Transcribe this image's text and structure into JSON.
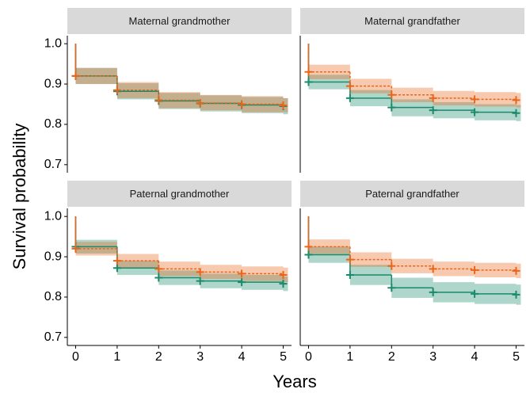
{
  "ylabel": "Survival probability",
  "xlabel": "Years",
  "chart_data": [
    {
      "type": "line",
      "title": "Maternal grandmother",
      "xlim": [
        -0.2,
        5.2
      ],
      "ylim": [
        0.68,
        1.02
      ],
      "yticks": [
        0.7,
        0.8,
        0.9,
        {
          "value": 1,
          "label": "1.0"
        }
      ],
      "x": [
        0,
        0,
        1,
        2,
        3,
        4,
        5
      ],
      "series": [
        {
          "color": "#1a8a6a",
          "linestyle": "solid",
          "values": [
            1,
            0.92,
            0.882,
            0.858,
            0.852,
            0.848,
            0.845
          ],
          "lower": [
            null,
            0.9,
            0.862,
            0.838,
            0.832,
            0.828,
            0.825
          ],
          "upper": [
            null,
            0.94,
            0.902,
            0.878,
            0.872,
            0.868,
            0.865
          ]
        },
        {
          "color": "#e8661c",
          "linestyle": "dashed",
          "values": [
            1,
            0.92,
            0.885,
            0.86,
            0.853,
            0.85,
            0.847
          ],
          "lower": [
            null,
            0.9,
            0.865,
            0.84,
            0.835,
            0.83,
            0.83
          ],
          "upper": [
            null,
            0.94,
            0.905,
            0.88,
            0.873,
            0.87,
            0.865
          ]
        }
      ]
    },
    {
      "type": "line",
      "title": "Maternal grandfather",
      "xlim": [
        -0.2,
        5.2
      ],
      "ylim": [
        0.68,
        1.02
      ],
      "x": [
        0,
        0,
        1,
        2,
        3,
        4,
        5
      ],
      "series": [
        {
          "color": "#1a8a6a",
          "linestyle": "solid",
          "values": [
            1,
            0.905,
            0.865,
            0.842,
            0.835,
            0.83,
            0.828
          ],
          "lower": [
            null,
            0.887,
            0.845,
            0.82,
            0.815,
            0.81,
            0.808
          ],
          "upper": [
            null,
            0.923,
            0.885,
            0.862,
            0.855,
            0.85,
            0.848
          ]
        },
        {
          "color": "#e8661c",
          "linestyle": "dashed",
          "values": [
            1,
            0.93,
            0.895,
            0.873,
            0.865,
            0.862,
            0.86
          ],
          "lower": [
            null,
            0.912,
            0.877,
            0.855,
            0.847,
            0.844,
            0.842
          ],
          "upper": [
            null,
            0.948,
            0.913,
            0.891,
            0.883,
            0.88,
            0.878
          ]
        }
      ]
    },
    {
      "type": "line",
      "title": "Paternal grandmother",
      "xlim": [
        -0.2,
        5.2
      ],
      "ylim": [
        0.68,
        1.02
      ],
      "yticks": [
        0.7,
        0.8,
        0.9,
        {
          "value": 1,
          "label": "1.0"
        }
      ],
      "xticks": [
        0,
        1,
        2,
        3,
        4,
        5
      ],
      "x": [
        0,
        0,
        1,
        2,
        3,
        4,
        5
      ],
      "series": [
        {
          "color": "#1a8a6a",
          "linestyle": "solid",
          "values": [
            1,
            0.925,
            0.872,
            0.848,
            0.84,
            0.837,
            0.833
          ],
          "lower": [
            null,
            0.908,
            0.855,
            0.83,
            0.822,
            0.818,
            0.815
          ],
          "upper": [
            null,
            0.942,
            0.89,
            0.866,
            0.858,
            0.855,
            0.851
          ]
        },
        {
          "color": "#e8661c",
          "linestyle": "dashed",
          "values": [
            1,
            0.92,
            0.89,
            0.87,
            0.862,
            0.858,
            0.855
          ],
          "lower": [
            null,
            0.903,
            0.873,
            0.852,
            0.845,
            0.84,
            0.837
          ],
          "upper": [
            null,
            0.937,
            0.907,
            0.888,
            0.88,
            0.876,
            0.873
          ]
        }
      ]
    },
    {
      "type": "line",
      "title": "Paternal grandfather",
      "xlim": [
        -0.2,
        5.2
      ],
      "ylim": [
        0.68,
        1.02
      ],
      "xticks": [
        0,
        1,
        2,
        3,
        4,
        5
      ],
      "x": [
        0,
        0,
        1,
        2,
        3,
        4,
        5
      ],
      "series": [
        {
          "color": "#1a8a6a",
          "linestyle": "solid",
          "values": [
            1,
            0.905,
            0.855,
            0.823,
            0.812,
            0.808,
            0.806
          ],
          "lower": [
            null,
            0.885,
            0.83,
            0.798,
            0.787,
            0.783,
            0.781
          ],
          "upper": [
            null,
            0.925,
            0.88,
            0.848,
            0.837,
            0.833,
            0.831
          ]
        },
        {
          "color": "#e8661c",
          "linestyle": "dashed",
          "values": [
            1,
            0.925,
            0.893,
            0.877,
            0.87,
            0.867,
            0.865
          ],
          "lower": [
            null,
            0.907,
            0.875,
            0.859,
            0.852,
            0.849,
            0.847
          ],
          "upper": [
            null,
            0.943,
            0.911,
            0.895,
            0.888,
            0.885,
            0.883
          ]
        }
      ]
    }
  ]
}
